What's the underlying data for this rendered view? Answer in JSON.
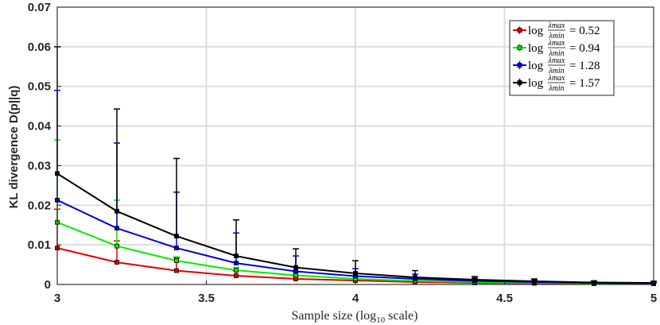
{
  "chart_data": {
    "type": "line",
    "title": "",
    "xlabel": "Sample size (log",
    "xlabel_sub": "10",
    "xlabel_suffix": " scale)",
    "ylabel": "KL divergence D(p||q)",
    "xlim": [
      3,
      5
    ],
    "ylim": [
      0,
      0.07
    ],
    "xticks": [
      "3",
      "3.5",
      "4",
      "4.5",
      "5"
    ],
    "yticks": [
      "0",
      "0.01",
      "0.02",
      "0.03",
      "0.04",
      "0.05",
      "0.06",
      "0.07"
    ],
    "grid": true,
    "legend_position": "top-right",
    "x": [
      3.0,
      3.2,
      3.4,
      3.6,
      3.8,
      4.0,
      4.2,
      4.4,
      4.6,
      4.8,
      5.0
    ],
    "series": [
      {
        "name": "log λmax/λmin = 0.52",
        "legend_prefix": "log",
        "legend_num": "λmax",
        "legend_den": "λmin",
        "legend_value": "= 0.52",
        "color": "#e00000",
        "values": [
          0.0092,
          0.0056,
          0.0035,
          0.0022,
          0.0014,
          0.001,
          0.0006,
          0.0004,
          0.0003,
          0.0002,
          0.0002
        ],
        "err_upper": [
          0.019,
          0.011,
          0.0067,
          0.0035,
          0.0021,
          0.0015,
          0.001,
          0.0007,
          0.0005,
          0.0003,
          0.0003
        ]
      },
      {
        "name": "log λmax/λmin = 0.94",
        "legend_prefix": "log",
        "legend_num": "λmax",
        "legend_den": "λmin",
        "legend_value": "= 0.94",
        "color": "#00ee00",
        "values": [
          0.0157,
          0.0097,
          0.006,
          0.0036,
          0.0023,
          0.0014,
          0.0009,
          0.0006,
          0.0004,
          0.0003,
          0.0002
        ],
        "err_upper": [
          0.0365,
          0.0213,
          0.007,
          0.0043,
          0.0031,
          0.002,
          0.0013,
          0.0009,
          0.0006,
          0.0004,
          0.0003
        ]
      },
      {
        "name": "log λmax/λmin = 1.28",
        "legend_prefix": "log",
        "legend_num": "λmax",
        "legend_den": "λmin",
        "legend_value": "= 1.28",
        "color": "#0000dd",
        "values": [
          0.0213,
          0.0142,
          0.0092,
          0.0054,
          0.0033,
          0.0021,
          0.0014,
          0.0009,
          0.0006,
          0.0004,
          0.0003
        ],
        "err_upper": [
          0.049,
          0.0357,
          0.0233,
          0.013,
          0.0072,
          0.004,
          0.0026,
          0.0016,
          0.001,
          0.0007,
          0.0005
        ]
      },
      {
        "name": "log λmax/λmin = 1.57",
        "legend_prefix": "log",
        "legend_num": "λmax",
        "legend_den": "λmin",
        "legend_value": "= 1.57",
        "color": "#000000",
        "values": [
          0.028,
          0.0185,
          0.0122,
          0.0072,
          0.0043,
          0.0028,
          0.0018,
          0.0012,
          0.0008,
          0.0005,
          0.0004
        ],
        "err_upper": [
          0.06,
          0.0443,
          0.0318,
          0.0163,
          0.009,
          0.006,
          0.0035,
          0.002,
          0.0014,
          0.0009,
          0.0008
        ]
      }
    ]
  }
}
